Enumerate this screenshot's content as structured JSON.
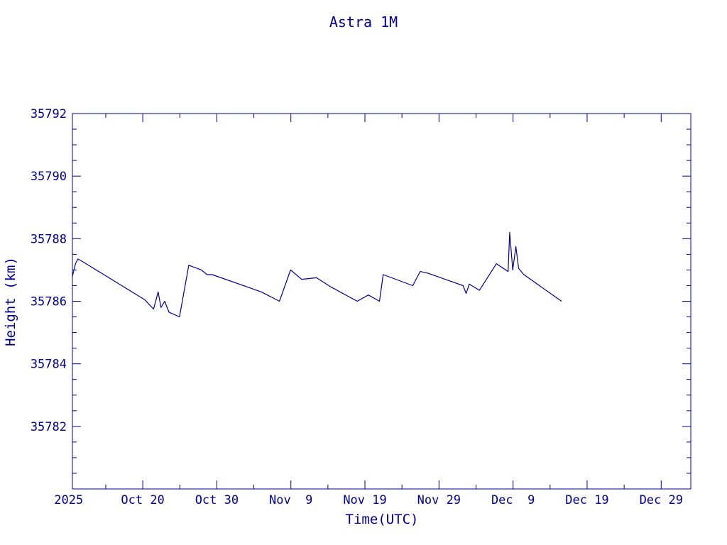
{
  "chart_data": {
    "type": "line",
    "title": "Astra 1M",
    "xlabel": "Time(UTC)",
    "ylabel": "Height (km)",
    "color": "#00008b",
    "grid": false,
    "xlim": [
      "2025-10-10T12:00",
      "2026-01-02T00:00"
    ],
    "ylim": [
      35780,
      35792
    ],
    "x_ticks": [
      {
        "date": "2025-10-10",
        "label": "2025"
      },
      {
        "date": "2025-10-20",
        "label": "Oct 20"
      },
      {
        "date": "2025-10-30",
        "label": "Oct 30"
      },
      {
        "date": "2025-11-09",
        "label": "Nov  9"
      },
      {
        "date": "2025-11-19",
        "label": "Nov 19"
      },
      {
        "date": "2025-11-29",
        "label": "Nov 29"
      },
      {
        "date": "2025-12-09",
        "label": "Dec  9"
      },
      {
        "date": "2025-12-19",
        "label": "Dec 19"
      },
      {
        "date": "2025-12-29",
        "label": "Dec 29"
      }
    ],
    "y_ticks": [
      35782,
      35784,
      35786,
      35788,
      35790,
      35792
    ],
    "series": [
      {
        "points": [
          [
            "2025-10-10T12:00",
            35786.8
          ],
          [
            "2025-10-10T22:00",
            35787.2
          ],
          [
            "2025-10-11T06:00",
            35787.35
          ],
          [
            "2025-10-12T00:00",
            35787.25
          ],
          [
            "2025-10-20T06:00",
            35786.05
          ],
          [
            "2025-10-21T11:00",
            35785.75
          ],
          [
            "2025-10-22T02:00",
            35786.3
          ],
          [
            "2025-10-22T11:00",
            35785.8
          ],
          [
            "2025-10-22T23:00",
            35786.0
          ],
          [
            "2025-10-23T13:00",
            35785.65
          ],
          [
            "2025-10-24T23:00",
            35785.5
          ],
          [
            "2025-10-26T05:00",
            35787.15
          ],
          [
            "2025-10-27T22:00",
            35787.0
          ],
          [
            "2025-10-28T16:00",
            35786.85
          ],
          [
            "2025-10-29T09:00",
            35786.85
          ],
          [
            "2025-11-05T00:00",
            35786.3
          ],
          [
            "2025-11-07T11:00",
            35786.0
          ],
          [
            "2025-11-08T23:00",
            35787.0
          ],
          [
            "2025-11-10T11:00",
            35786.7
          ],
          [
            "2025-11-12T11:00",
            35786.75
          ],
          [
            "2025-11-14T11:00",
            35786.45
          ],
          [
            "2025-11-17T23:00",
            35786.0
          ],
          [
            "2025-11-19T11:00",
            35786.2
          ],
          [
            "2025-11-20T23:00",
            35786.0
          ],
          [
            "2025-11-21T11:00",
            35786.85
          ],
          [
            "2025-11-25T11:00",
            35786.5
          ],
          [
            "2025-11-26T11:00",
            35786.95
          ],
          [
            "2025-11-27T11:00",
            35786.9
          ],
          [
            "2025-12-02T06:00",
            35786.5
          ],
          [
            "2025-12-02T16:00",
            35786.25
          ],
          [
            "2025-12-03T02:00",
            35786.55
          ],
          [
            "2025-12-04T11:00",
            35786.35
          ],
          [
            "2025-12-06T18:00",
            35787.2
          ],
          [
            "2025-12-08T08:00",
            35786.95
          ],
          [
            "2025-12-08T13:00",
            35788.2
          ],
          [
            "2025-12-08T23:00",
            35787.0
          ],
          [
            "2025-12-09T09:00",
            35787.75
          ],
          [
            "2025-12-09T18:00",
            35787.05
          ],
          [
            "2025-12-10T11:00",
            35786.85
          ],
          [
            "2025-12-15T13:00",
            35786.0
          ]
        ]
      }
    ]
  }
}
